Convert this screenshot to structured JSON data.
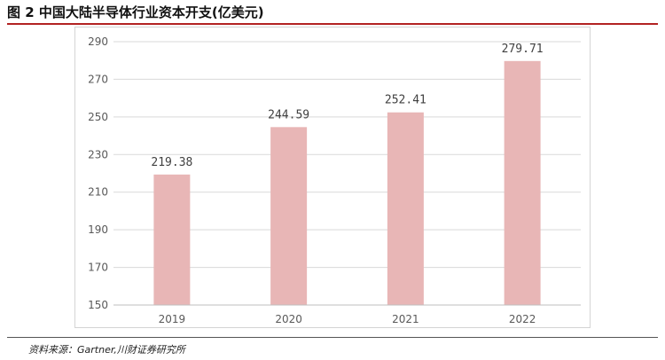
{
  "figure": {
    "title": "图 2 中国大陆半导体行业资本开支(亿美元)",
    "source": "资料来源：Gartner,川财证券研究所"
  },
  "chart_data": {
    "type": "bar",
    "title": "",
    "xlabel": "",
    "ylabel": "",
    "categories": [
      "2019",
      "2020",
      "2021",
      "2022"
    ],
    "series": [
      {
        "values": [
          219.38,
          244.59,
          252.41,
          279.71
        ],
        "labels": [
          "219.38",
          "244.59",
          "252.41",
          "279.71"
        ]
      }
    ],
    "ylim": [
      150,
      290
    ],
    "yticks": [
      "150",
      "170",
      "190",
      "210",
      "230",
      "250",
      "270",
      "290"
    ],
    "grid": true,
    "legend": "none",
    "colors": {
      "bar": "#e8b6b6",
      "grid": "#d9d9d9",
      "tick_text": "#595959",
      "label_text": "#404040"
    }
  }
}
